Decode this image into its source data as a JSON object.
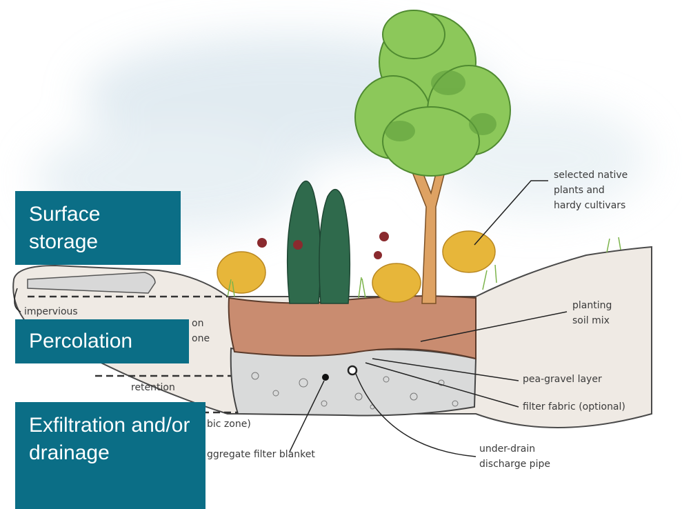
{
  "callouts": [
    {
      "text": "Surface storage"
    },
    {
      "text": "Percolation"
    },
    {
      "text": "Exfiltration and/or drainage"
    }
  ],
  "labels": [
    {
      "lines": [
        "selected native",
        "plants and",
        "hardy cultivars"
      ]
    },
    {
      "lines": [
        "planting",
        "soil mix"
      ]
    },
    {
      "lines": [
        "pea-gravel layer"
      ]
    },
    {
      "lines": [
        "filter fabric (optional)"
      ]
    },
    {
      "lines": [
        "under-drain",
        "discharge pipe"
      ]
    },
    {
      "lines": [
        "impervious"
      ]
    },
    {
      "lines": [
        "on",
        "one"
      ]
    },
    {
      "lines": [
        "retention"
      ]
    },
    {
      "lines": [
        "bic zone)"
      ]
    },
    {
      "lines": [
        "ggregate filter blanket"
      ]
    }
  ]
}
